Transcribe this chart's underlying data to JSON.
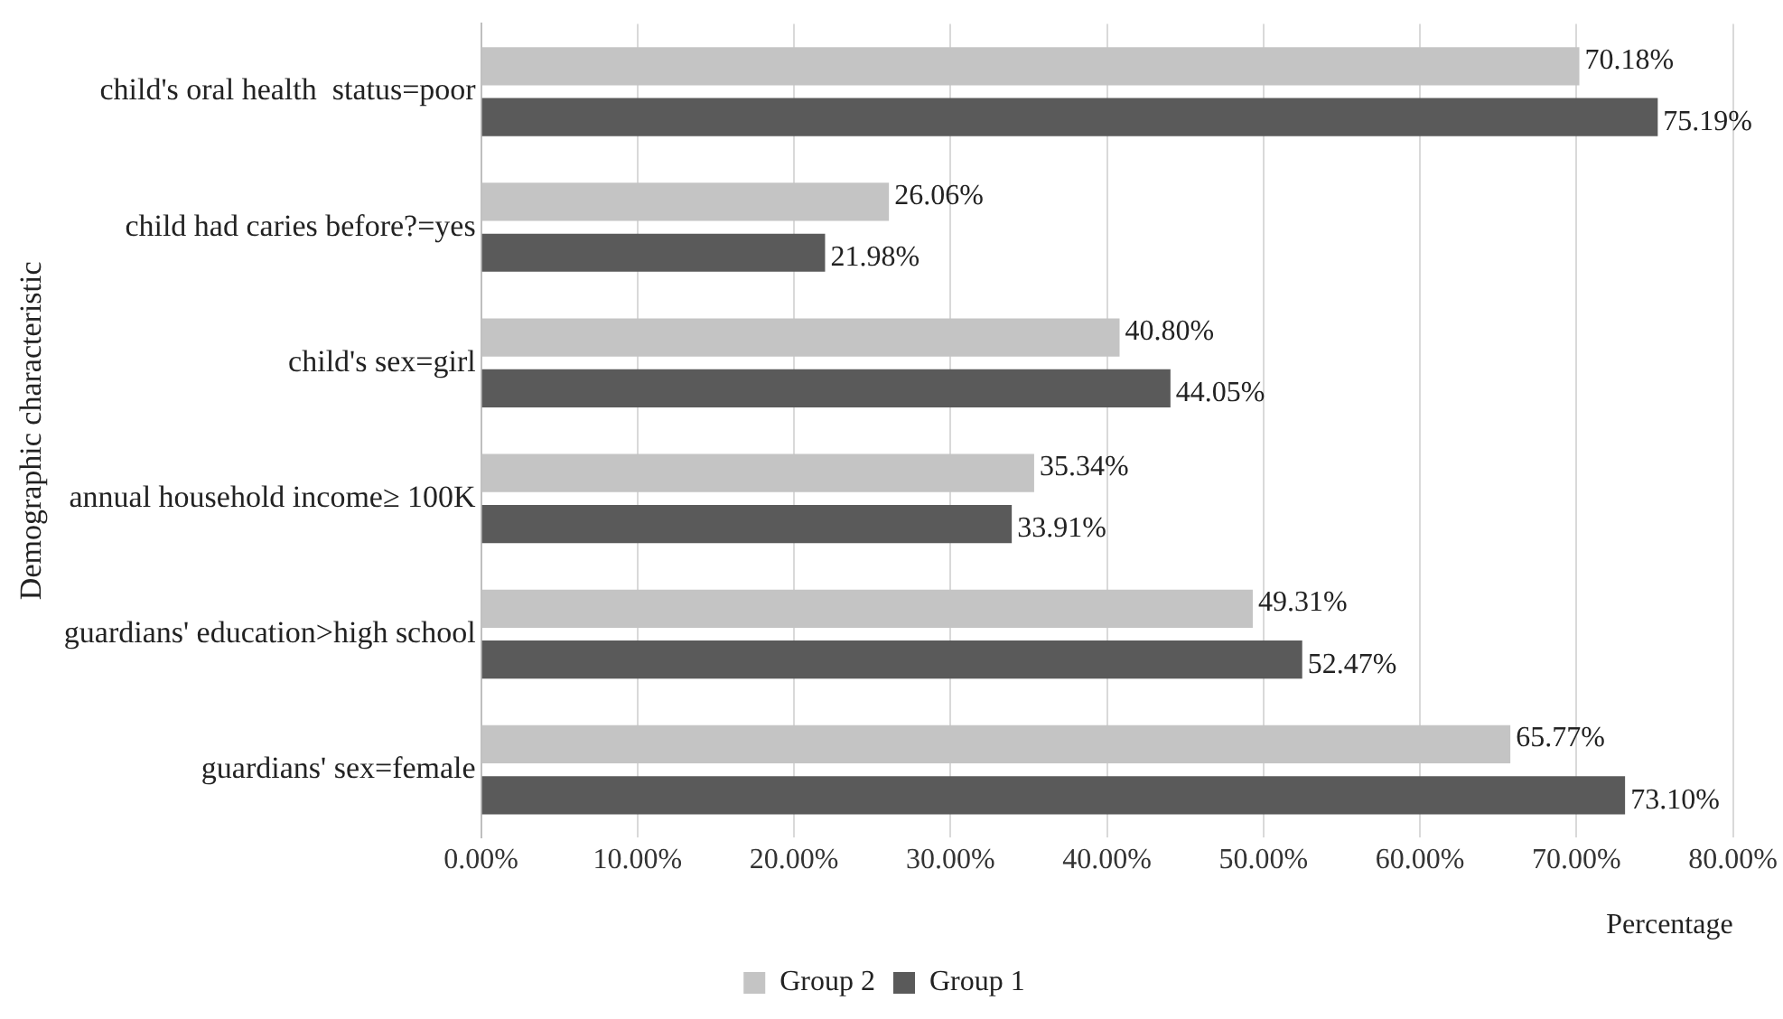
{
  "chart_data": {
    "type": "bar",
    "orientation": "horizontal",
    "xlabel": "Percentage",
    "ylabel": "Demographic characteristic",
    "categories": [
      "child's oral health  status=poor",
      "child had caries before?=yes",
      "child's sex=girl",
      "annual household income≥ 100K",
      "guardians' education>high school",
      "guardians' sex=female"
    ],
    "series": [
      {
        "name": "Group 2",
        "color": "#c4c4c4",
        "values": [
          70.18,
          26.06,
          40.8,
          35.34,
          49.31,
          65.77
        ],
        "value_labels": [
          "70.18%",
          "26.06%",
          "40.80%",
          "35.34%",
          "49.31%",
          "65.77%"
        ]
      },
      {
        "name": "Group 1",
        "color": "#5a5a5a",
        "values": [
          75.19,
          21.98,
          44.05,
          33.91,
          52.47,
          73.1
        ],
        "value_labels": [
          "75.19%",
          "21.98%",
          "44.05%",
          "33.91%",
          "52.47%",
          "73.10%"
        ]
      }
    ],
    "xlim": [
      0,
      80
    ],
    "xticks": [
      {
        "value": 0,
        "label": "0.00%"
      },
      {
        "value": 10,
        "label": "10.00%"
      },
      {
        "value": 20,
        "label": "20.00%"
      },
      {
        "value": 30,
        "label": "30.00%"
      },
      {
        "value": 40,
        "label": "40.00%"
      },
      {
        "value": 50,
        "label": "50.00%"
      },
      {
        "value": 60,
        "label": "60.00%"
      },
      {
        "value": 70,
        "label": "70.00%"
      },
      {
        "value": 80,
        "label": "80.00%"
      }
    ],
    "grid": "x",
    "legend": "bottom"
  }
}
